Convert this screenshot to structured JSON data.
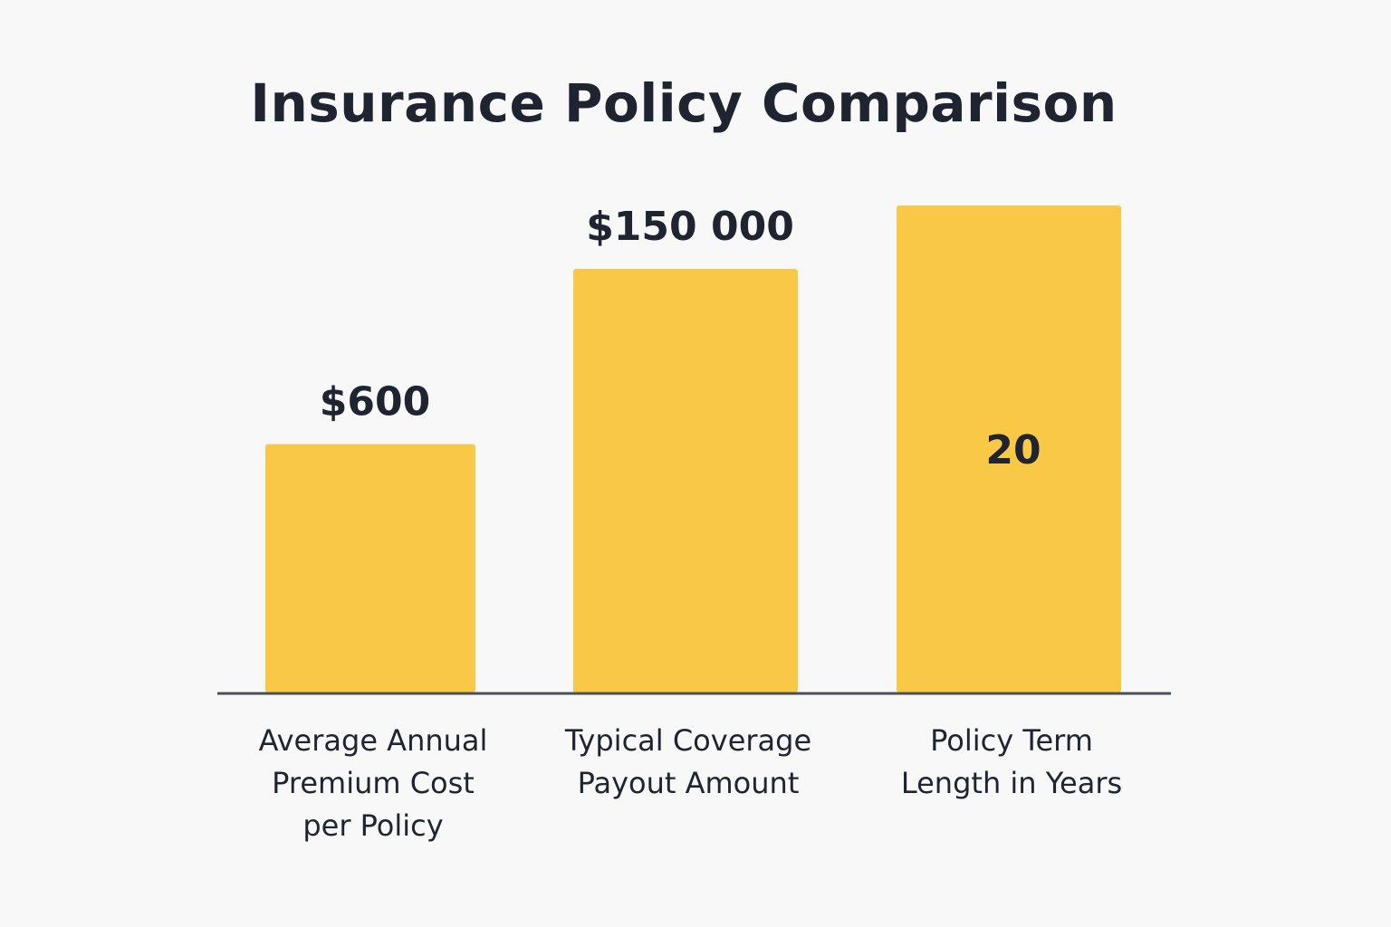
{
  "chart_data": {
    "type": "bar",
    "title": "Insurance Policy Comparison",
    "categories": [
      "Average Annual Premium Cost per Policy",
      "Typical Coverage Payout Amount",
      "Policy Term Length in Years"
    ],
    "category_label_lines": [
      [
        "Average Annual",
        "Premium Cost",
        "per Policy"
      ],
      [
        "Typical Coverage",
        "Payout Amount"
      ],
      [
        "Policy Term",
        "Length in Years"
      ]
    ],
    "values": [
      600,
      150000,
      20
    ],
    "value_labels": [
      "$600",
      "$150 000",
      "20"
    ],
    "bar_fill_fraction": [
      0.51,
      0.87,
      1.0
    ],
    "value_label_position": [
      "above",
      "above",
      "inside"
    ],
    "xlabel": "",
    "ylabel": "",
    "grid": false,
    "legend": "none",
    "colors": {
      "bar": "#f9c846",
      "axis": "#4a5058",
      "text": "#1f2430",
      "background": "#f8f8f8"
    }
  }
}
